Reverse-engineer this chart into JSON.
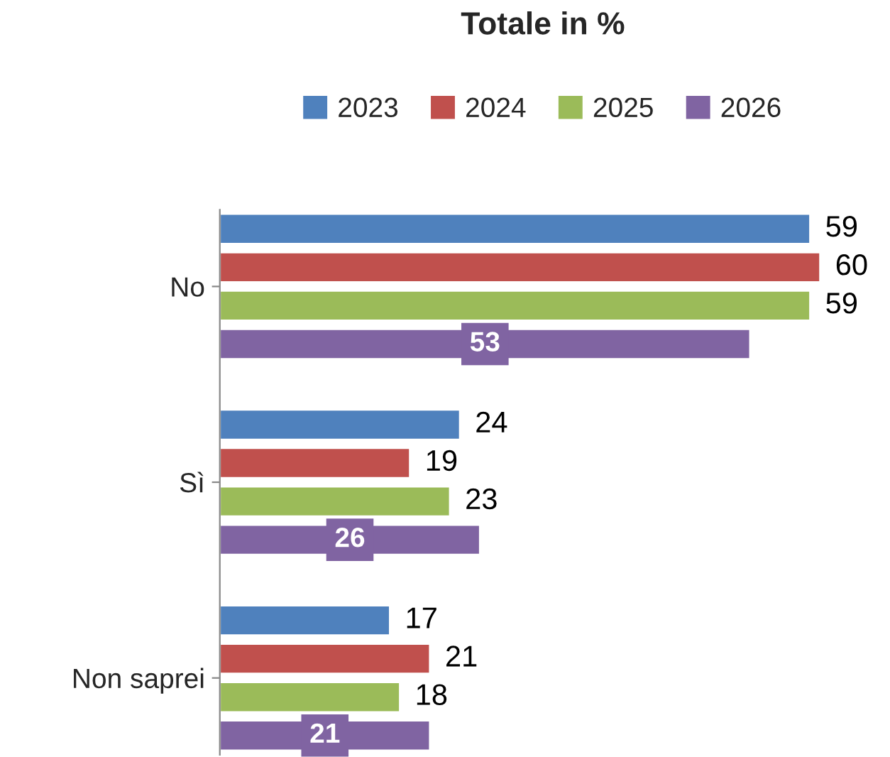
{
  "chart_data": {
    "type": "bar",
    "orientation": "horizontal",
    "title": "Totale in %",
    "categories": [
      "No",
      "Sì",
      "Non saprei"
    ],
    "series": [
      {
        "name": "2023",
        "color": "#4f81bd",
        "values": [
          59,
          24,
          17
        ]
      },
      {
        "name": "2024",
        "color": "#c0504d",
        "values": [
          60,
          19,
          21
        ]
      },
      {
        "name": "2025",
        "color": "#9bbb59",
        "values": [
          59,
          23,
          18
        ]
      },
      {
        "name": "2026",
        "color": "#8064a2",
        "values": [
          53,
          26,
          21
        ]
      }
    ],
    "data_labels": true,
    "legend": "top",
    "grid": false,
    "tick_labels": "y"
  }
}
